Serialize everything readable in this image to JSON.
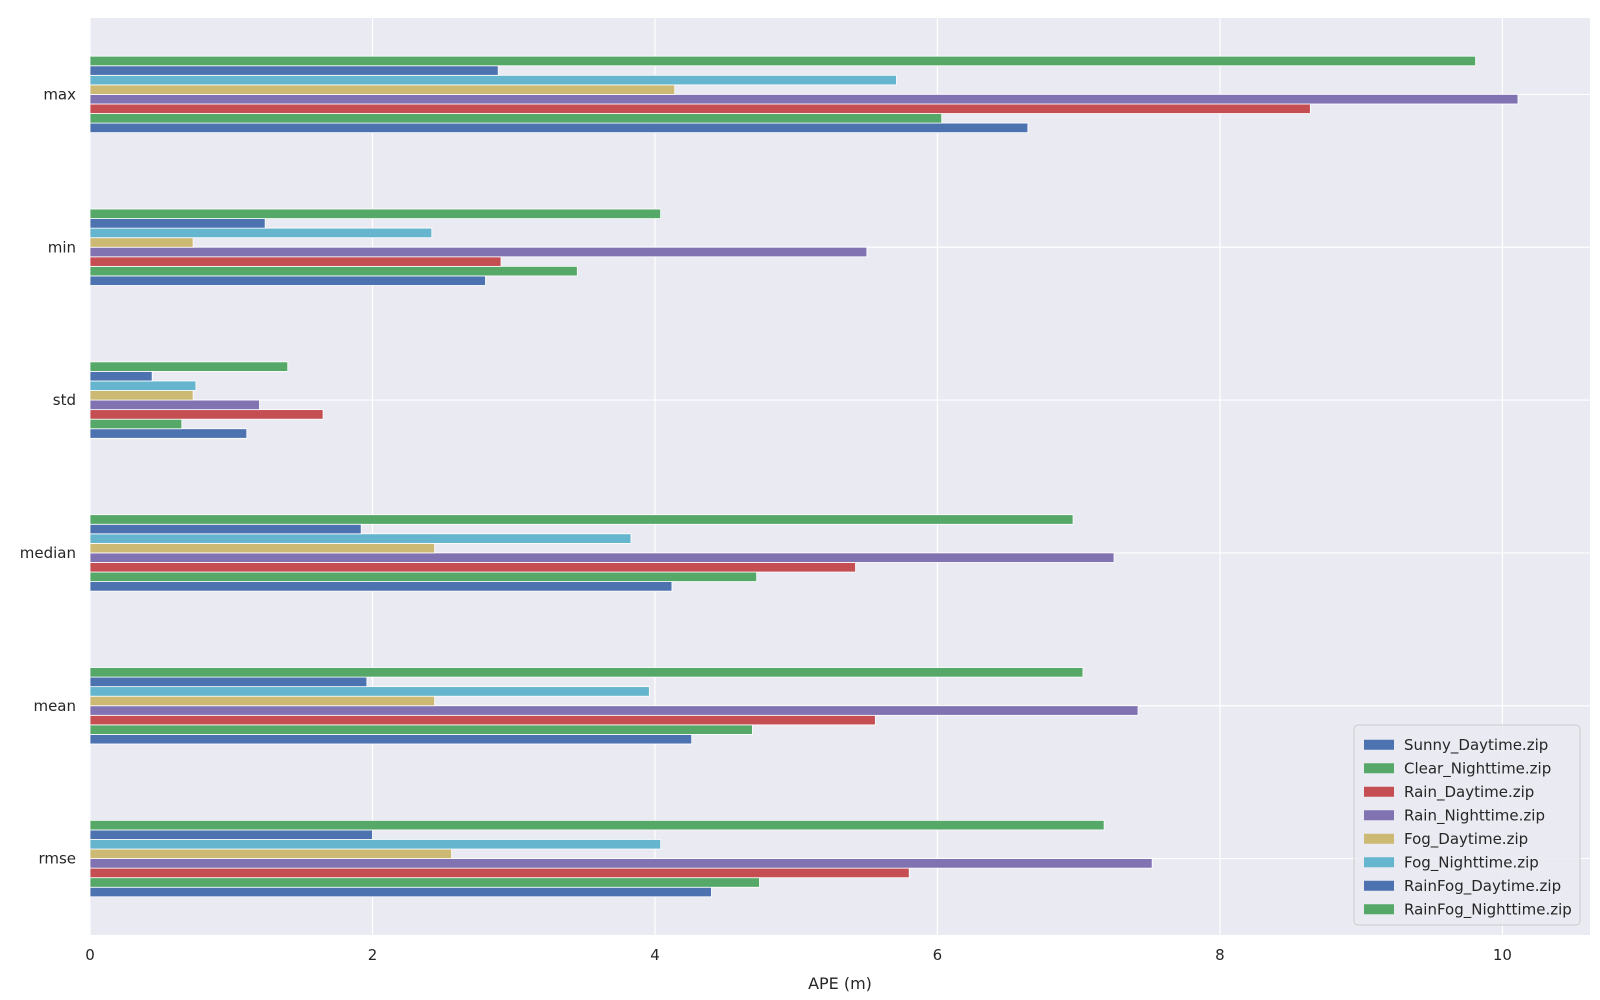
{
  "chart_data": {
    "type": "bar",
    "orientation": "horizontal",
    "categories": [
      "rmse",
      "mean",
      "median",
      "std",
      "min",
      "max"
    ],
    "series": [
      {
        "name": "Sunny_Daytime.zip",
        "color": "#4c72b0",
        "values": [
          4.4,
          4.26,
          4.12,
          1.11,
          2.8,
          6.64
        ]
      },
      {
        "name": "Clear_Nighttime.zip",
        "color": "#55a868",
        "values": [
          4.74,
          4.69,
          4.72,
          0.65,
          3.45,
          6.03
        ]
      },
      {
        "name": "Rain_Daytime.zip",
        "color": "#c44e52",
        "values": [
          5.8,
          5.56,
          5.42,
          1.65,
          2.91,
          8.64
        ]
      },
      {
        "name": "Rain_Nighttime.zip",
        "color": "#8172b2",
        "values": [
          7.52,
          7.42,
          7.25,
          1.2,
          5.5,
          10.11
        ]
      },
      {
        "name": "Fog_Daytime.zip",
        "color": "#ccb974",
        "values": [
          2.56,
          2.44,
          2.44,
          0.73,
          0.73,
          4.14
        ]
      },
      {
        "name": "Fog_Nighttime.zip",
        "color": "#64b5cd",
        "values": [
          4.04,
          3.96,
          3.83,
          0.75,
          2.42,
          5.71
        ]
      },
      {
        "name": "RainFog_Daytime.zip",
        "color": "#4c72b0",
        "values": [
          2.0,
          1.96,
          1.92,
          0.44,
          1.24,
          2.89
        ]
      },
      {
        "name": "RainFog_Nighttime.zip",
        "color": "#55a868",
        "values": [
          7.18,
          7.03,
          6.96,
          1.4,
          4.04,
          9.81
        ]
      }
    ],
    "xlabel": "APE (m)",
    "ylabel": "",
    "xlim": [
      0,
      10.62
    ],
    "xticks": [
      0,
      2,
      4,
      6,
      8,
      10
    ],
    "grid": true,
    "legend_position": "lower right",
    "background": "#eaeaf2"
  }
}
